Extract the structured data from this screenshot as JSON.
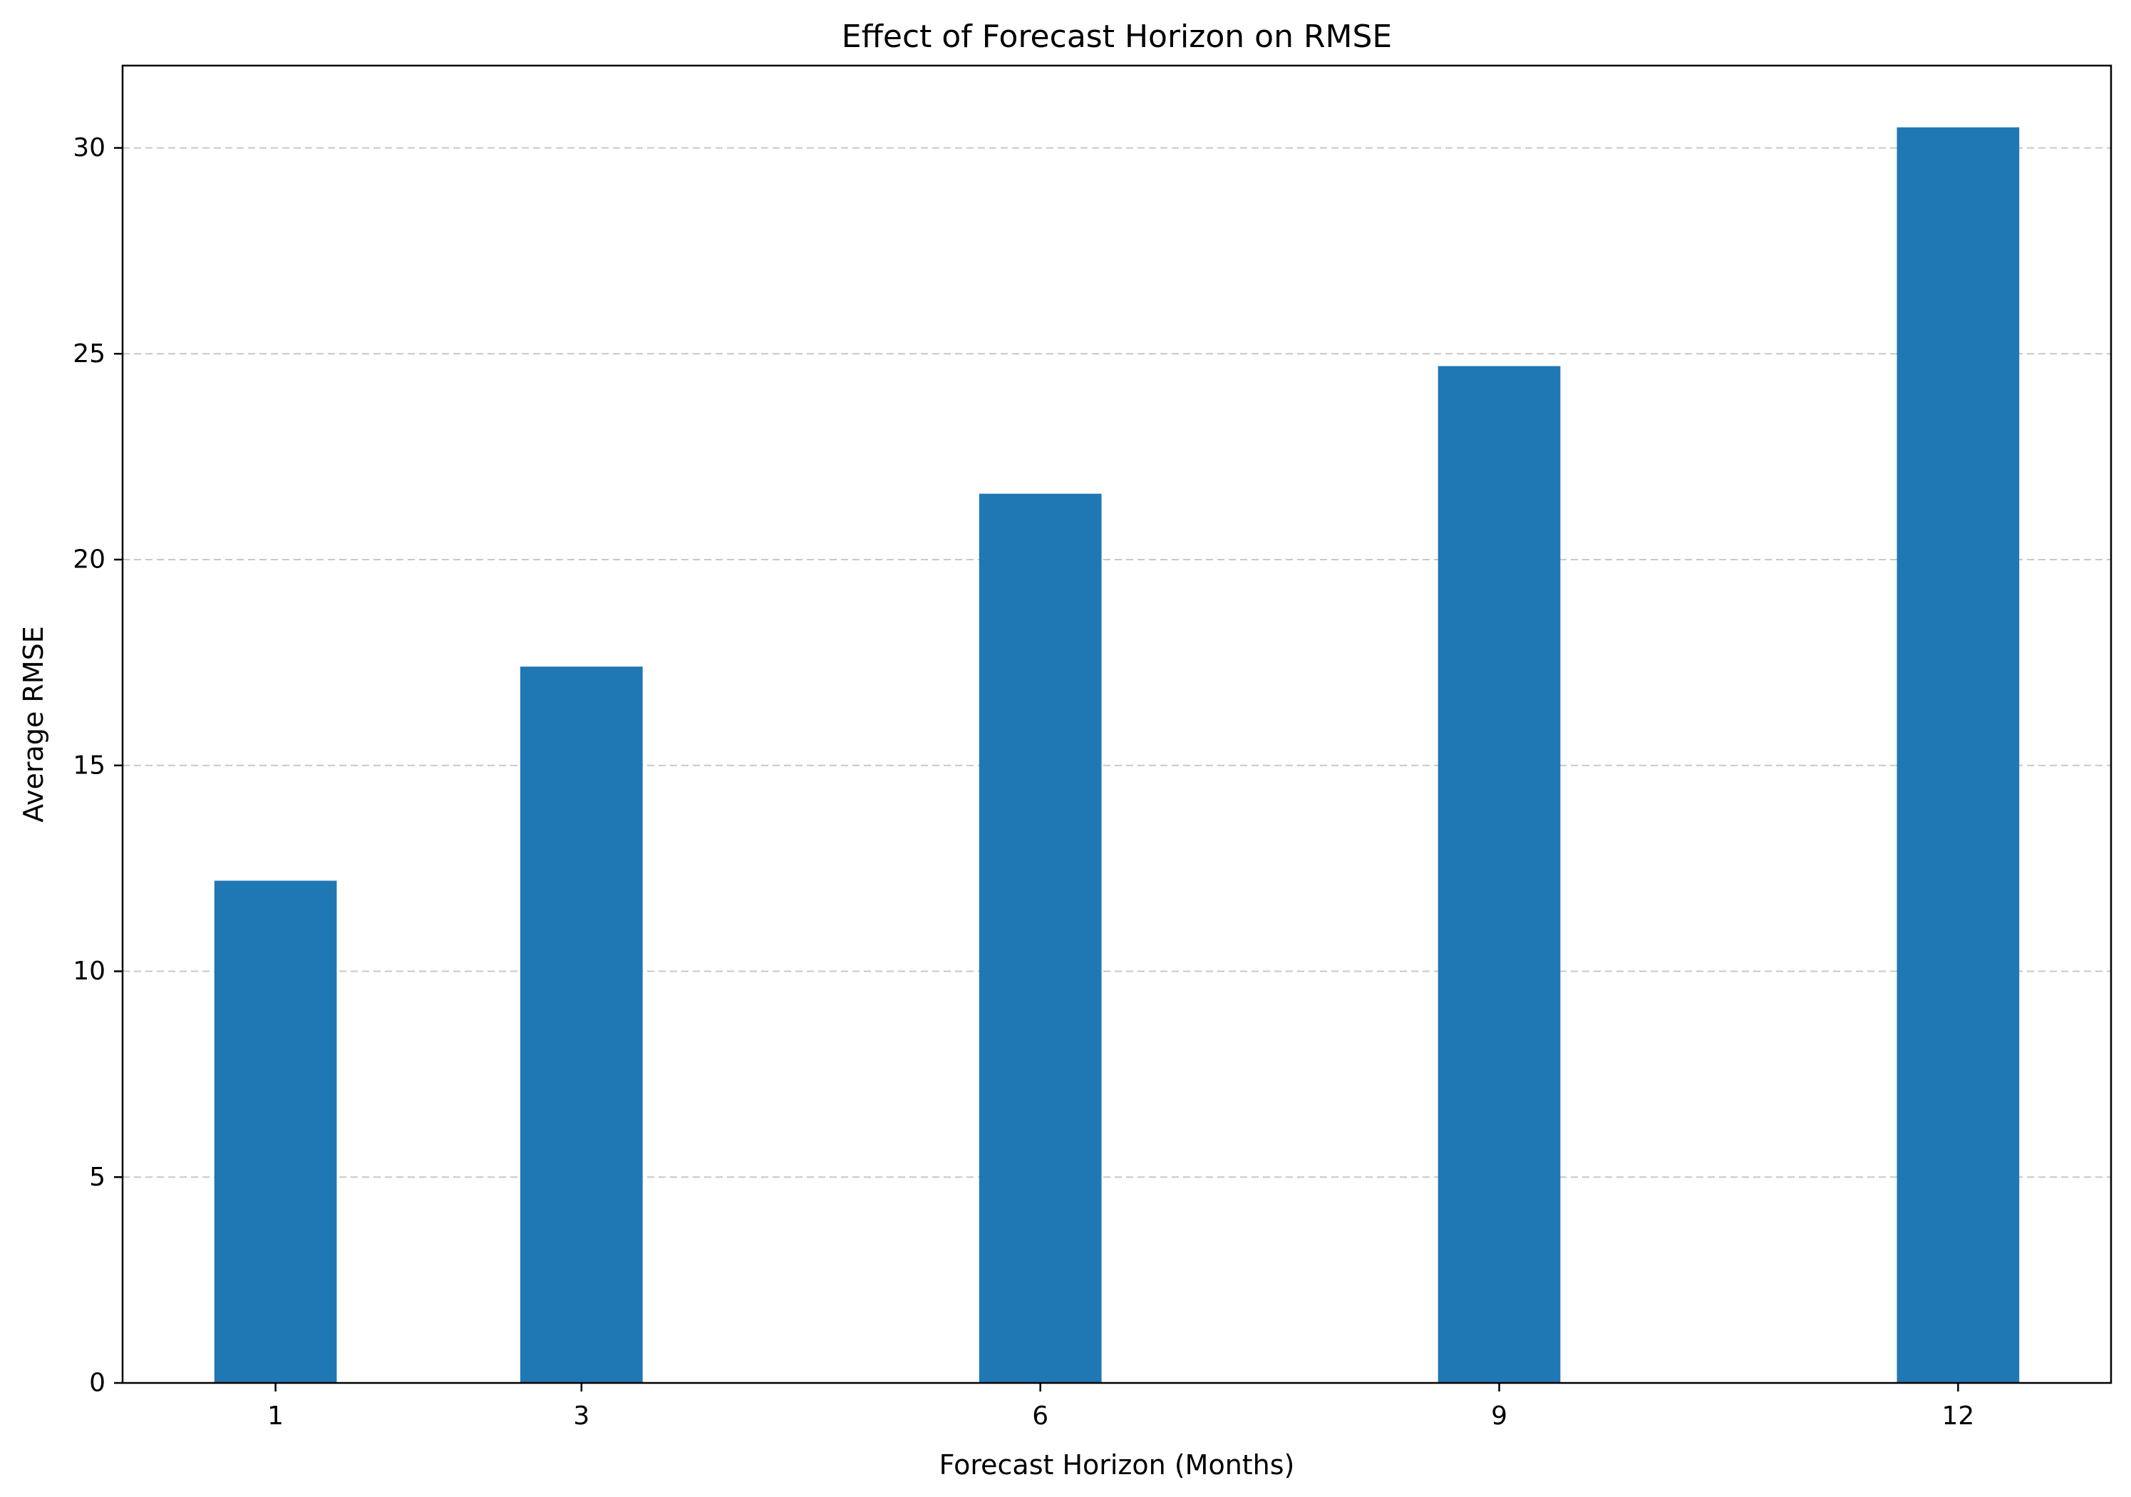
{
  "chart_data": {
    "type": "bar",
    "title": "Effect of Forecast Horizon on RMSE",
    "xlabel": "Forecast Horizon (Months)",
    "ylabel": "Average RMSE",
    "x": [
      1,
      3,
      6,
      9,
      12
    ],
    "values": [
      12.2,
      17.4,
      21.6,
      24.7,
      30.5
    ],
    "xlim": [
      0,
      13
    ],
    "ylim": [
      0,
      32
    ],
    "xticks": [
      1,
      3,
      6,
      9,
      12
    ],
    "yticks": [
      0,
      5,
      10,
      15,
      20,
      25,
      30
    ],
    "bar_width": 0.8,
    "bar_color": "#1f77b4",
    "grid": "y-dashed",
    "grid_color": "#c8c8c8"
  }
}
